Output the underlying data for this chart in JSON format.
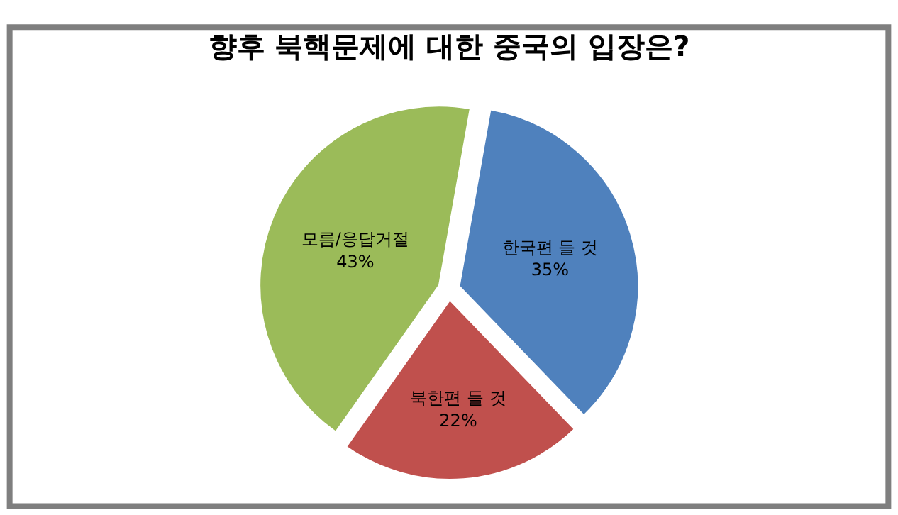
{
  "chart_data": {
    "type": "pie",
    "title": "향후 북핵문제에 대한 중국의 입장은?",
    "categories": [
      "한국편 들 것",
      "북한편 들 것",
      "모름/응답거절"
    ],
    "values": [
      35,
      22,
      43
    ],
    "value_labels": [
      "35%",
      "22%",
      "43%"
    ],
    "colors": [
      "#4f81bd",
      "#c0504d",
      "#9bbb59"
    ],
    "legend": false
  }
}
